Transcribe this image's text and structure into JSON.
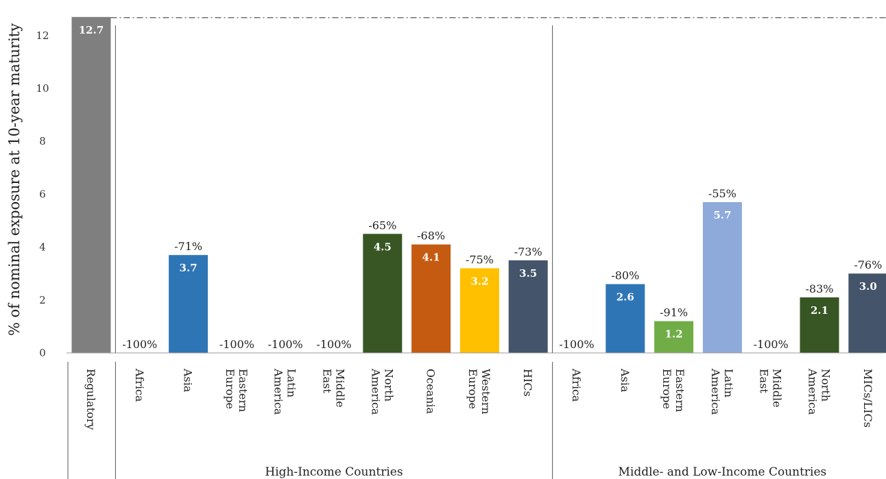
{
  "chart_data": {
    "type": "bar",
    "ylabel": "% of nominal exposure at 10-year maturity",
    "ylim": [
      0,
      12.7
    ],
    "yticks": [
      "0",
      "2",
      "4",
      "6",
      "8",
      "10",
      "12"
    ],
    "reference_line": {
      "value": 12.7,
      "style": "dash-dot"
    },
    "groups": [
      {
        "label": "",
        "start": 0,
        "end": 0
      },
      {
        "label": "High-Income Countries",
        "start": 1,
        "end": 9
      },
      {
        "label": "Middle- and Low-Income Countries",
        "start": 10,
        "end": 16
      }
    ],
    "bars": [
      {
        "category": "Regulatory",
        "value": 12.7,
        "value_label": "12.7",
        "change_label": "",
        "color": "#7f7f7f"
      },
      {
        "category": "Africa",
        "value": 0,
        "value_label": "",
        "change_label": "-100%",
        "color": "#2e75b6"
      },
      {
        "category": "Asia",
        "value": 3.7,
        "value_label": "3.7",
        "change_label": "-71%",
        "color": "#2e75b6"
      },
      {
        "category": "Eastern Europe",
        "value": 0,
        "value_label": "",
        "change_label": "-100%",
        "color": "#2e75b6"
      },
      {
        "category": "Latin America",
        "value": 0,
        "value_label": "",
        "change_label": "-100%",
        "color": "#2e75b6"
      },
      {
        "category": "Middle East",
        "value": 0,
        "value_label": "",
        "change_label": "-100%",
        "color": "#2e75b6"
      },
      {
        "category": "North America",
        "value": 4.5,
        "value_label": "4.5",
        "change_label": "-65%",
        "color": "#375623"
      },
      {
        "category": "Oceania",
        "value": 4.1,
        "value_label": "4.1",
        "change_label": "-68%",
        "color": "#c55a11"
      },
      {
        "category": "Western Europe",
        "value": 3.2,
        "value_label": "3.2",
        "change_label": "-75%",
        "color": "#ffc000"
      },
      {
        "category": "HICs",
        "value": 3.5,
        "value_label": "3.5",
        "change_label": "-73%",
        "color": "#44546a"
      },
      {
        "category": "Africa",
        "value": 0,
        "value_label": "",
        "change_label": "-100%",
        "color": "#2e75b6"
      },
      {
        "category": "Asia",
        "value": 2.6,
        "value_label": "2.6",
        "change_label": "-80%",
        "color": "#2e75b6"
      },
      {
        "category": "Eastern Europe",
        "value": 1.2,
        "value_label": "1.2",
        "change_label": "-91%",
        "color": "#70ad47"
      },
      {
        "category": "Latin America",
        "value": 5.7,
        "value_label": "5.7",
        "change_label": "-55%",
        "color": "#8eaadb"
      },
      {
        "category": "Middle East",
        "value": 0,
        "value_label": "",
        "change_label": "-100%",
        "color": "#2e75b6"
      },
      {
        "category": "North America",
        "value": 2.1,
        "value_label": "2.1",
        "change_label": "-83%",
        "color": "#375623"
      },
      {
        "category": "MICs/LICs",
        "value": 3.0,
        "value_label": "3.0",
        "change_label": "-76%",
        "color": "#44546a"
      }
    ]
  }
}
